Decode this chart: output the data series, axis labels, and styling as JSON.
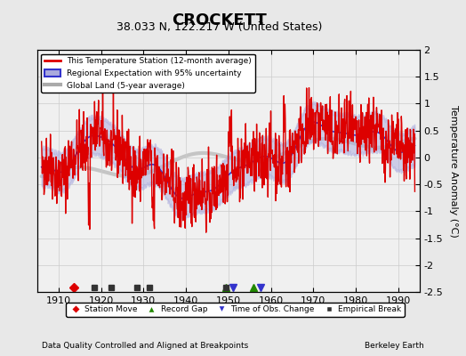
{
  "title": "CROCKETT",
  "subtitle": "38.033 N, 122.217 W (United States)",
  "ylabel": "Temperature Anomaly (°C)",
  "xlim": [
    1905,
    1995
  ],
  "ylim": [
    -2.5,
    2.0
  ],
  "yticks": [
    -2.5,
    -2,
    -1.5,
    -1,
    -0.5,
    0,
    0.5,
    1,
    1.5,
    2
  ],
  "xticks": [
    1910,
    1920,
    1930,
    1940,
    1950,
    1960,
    1970,
    1980,
    1990
  ],
  "xstart": 1906,
  "footer_left": "Data Quality Controlled and Aligned at Breakpoints",
  "footer_right": "Berkeley Earth",
  "legend_items": [
    {
      "label": "This Temperature Station (12-month average)",
      "color": "#dd0000",
      "lw": 1.5
    },
    {
      "label": "Regional Expectation with 95% uncertainty",
      "color": "#3333cc",
      "lw": 1.5
    },
    {
      "label": "Global Land (5-year average)",
      "color": "#aaaaaa",
      "lw": 3.0
    }
  ],
  "marker_legend": [
    {
      "marker": "D",
      "color": "#dd0000",
      "label": "Station Move"
    },
    {
      "marker": "^",
      "color": "#228800",
      "label": "Record Gap"
    },
    {
      "marker": "v",
      "color": "#3333cc",
      "label": "Time of Obs. Change"
    },
    {
      "marker": "s",
      "color": "#333333",
      "label": "Empirical Break"
    }
  ],
  "station_moves": [
    1913.5
  ],
  "record_gaps": [
    1949.5,
    1956.0
  ],
  "obs_changes": [
    1951.0,
    1957.5
  ],
  "empirical_breaks": [
    1918.5,
    1922.5,
    1928.5,
    1931.5,
    1949.5
  ],
  "bg_color": "#e8e8e8",
  "plot_bg": "#f0f0f0",
  "grid_color": "#cccccc",
  "uncertainty_color": "#aaaadd",
  "global_land_color": "#bbbbbb"
}
